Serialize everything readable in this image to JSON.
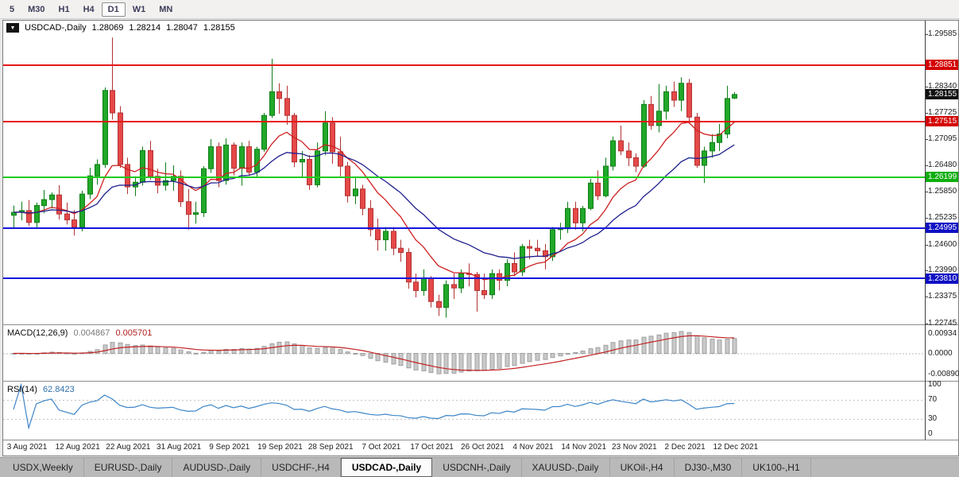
{
  "icons": {
    "chart_menu": "▼"
  },
  "toolbar": {
    "timeframes": [
      "5",
      "M30",
      "H1",
      "H4",
      "D1",
      "W1",
      "MN"
    ],
    "active": "D1"
  },
  "chart_header": {
    "symbol": "USDCAD-,Daily",
    "ohlc": [
      "1.28069",
      "1.28214",
      "1.28047",
      "1.28155"
    ]
  },
  "tabs": {
    "items": [
      "USDX,Weekly",
      "EURUSD-,Daily",
      "AUDUSD-,Daily",
      "USDCHF-,H4",
      "USDCAD-,Daily",
      "USDCNH-,Daily",
      "XAUUSD-,Daily",
      "UKOil-,H4",
      "DJ30-,M30",
      "UK100-,H1"
    ],
    "active": "USDCAD-,Daily"
  },
  "chart_data": {
    "type": "candlestick",
    "title": "USDCAD-,Daily",
    "ylim": [
      1.2272,
      1.299
    ],
    "y_labels": [
      "1.29585",
      "1.28340",
      "1.27725",
      "1.27095",
      "1.26480",
      "1.25850",
      "1.25235",
      "1.24600",
      "1.23990",
      "1.23375",
      "1.22745"
    ],
    "x_labels": [
      "3 Aug 2021",
      "12 Aug 2021",
      "22 Aug 2021",
      "31 Aug 2021",
      "9 Sep 2021",
      "19 Sep 2021",
      "28 Sep 2021",
      "7 Oct 2021",
      "17 Oct 2021",
      "26 Oct 2021",
      "4 Nov 2021",
      "14 Nov 2021",
      "23 Nov 2021",
      "2 Dec 2021",
      "12 Dec 2021"
    ],
    "colors": {
      "up": "#21a829",
      "up_border": "#0e7d18",
      "down": "#e64848",
      "down_border": "#b23333"
    },
    "candles": [
      [
        1.253,
        1.2553,
        1.25,
        1.2537
      ],
      [
        1.2537,
        1.2562,
        1.2518,
        1.2541
      ],
      [
        1.2541,
        1.2566,
        1.2505,
        1.2513
      ],
      [
        1.2513,
        1.256,
        1.25,
        1.2553
      ],
      [
        1.2553,
        1.259,
        1.2535,
        1.2567
      ],
      [
        1.2567,
        1.2584,
        1.2546,
        1.2578
      ],
      [
        1.2578,
        1.2601,
        1.252,
        1.2533
      ],
      [
        1.2533,
        1.256,
        1.2508,
        1.2519
      ],
      [
        1.2519,
        1.2542,
        1.2482,
        1.2502
      ],
      [
        1.2502,
        1.2588,
        1.2492,
        1.258
      ],
      [
        1.258,
        1.2642,
        1.2568,
        1.2623
      ],
      [
        1.2623,
        1.2662,
        1.2602,
        1.265
      ],
      [
        1.265,
        1.2832,
        1.2642,
        1.2825
      ],
      [
        1.2825,
        1.295,
        1.2756,
        1.2772
      ],
      [
        1.2772,
        1.2788,
        1.2642,
        1.265
      ],
      [
        1.265,
        1.2666,
        1.258,
        1.2597
      ],
      [
        1.2597,
        1.2622,
        1.2575,
        1.2608
      ],
      [
        1.2608,
        1.2692,
        1.26,
        1.2683
      ],
      [
        1.2683,
        1.2706,
        1.2614,
        1.2622
      ],
      [
        1.2622,
        1.264,
        1.2582,
        1.2601
      ],
      [
        1.2601,
        1.2655,
        1.2588,
        1.2612
      ],
      [
        1.2612,
        1.2648,
        1.2588,
        1.2622
      ],
      [
        1.2622,
        1.2636,
        1.255,
        1.2562
      ],
      [
        1.2562,
        1.2592,
        1.2496,
        1.2532
      ],
      [
        1.2532,
        1.2562,
        1.251,
        1.2536
      ],
      [
        1.2536,
        1.2646,
        1.2526,
        1.264
      ],
      [
        1.264,
        1.271,
        1.263,
        1.2692
      ],
      [
        1.2692,
        1.2702,
        1.2596,
        1.2612
      ],
      [
        1.2612,
        1.2712,
        1.2602,
        1.2696
      ],
      [
        1.2696,
        1.2702,
        1.2624,
        1.2641
      ],
      [
        1.2641,
        1.2702,
        1.26,
        1.2692
      ],
      [
        1.2692,
        1.2706,
        1.2624,
        1.2632
      ],
      [
        1.2632,
        1.2692,
        1.262,
        1.2686
      ],
      [
        1.2686,
        1.2772,
        1.268,
        1.2766
      ],
      [
        1.2766,
        1.29,
        1.276,
        1.2822
      ],
      [
        1.2822,
        1.2842,
        1.277,
        1.2806
      ],
      [
        1.2806,
        1.2836,
        1.2744,
        1.2766
      ],
      [
        1.2766,
        1.2772,
        1.2644,
        1.2656
      ],
      [
        1.2656,
        1.2682,
        1.262,
        1.2662
      ],
      [
        1.2662,
        1.2672,
        1.259,
        1.2602
      ],
      [
        1.2602,
        1.2702,
        1.2596,
        1.2682
      ],
      [
        1.2682,
        1.2776,
        1.2672,
        1.2748
      ],
      [
        1.2748,
        1.2762,
        1.2652,
        1.268
      ],
      [
        1.268,
        1.2716,
        1.2622,
        1.2646
      ],
      [
        1.2646,
        1.2656,
        1.256,
        1.2576
      ],
      [
        1.2576,
        1.2622,
        1.2556,
        1.2592
      ],
      [
        1.2592,
        1.2602,
        1.253,
        1.2546
      ],
      [
        1.2546,
        1.2566,
        1.248,
        1.2496
      ],
      [
        1.2496,
        1.2522,
        1.2446,
        1.2472
      ],
      [
        1.2472,
        1.2502,
        1.2446,
        1.2492
      ],
      [
        1.2492,
        1.2502,
        1.2436,
        1.2452
      ],
      [
        1.2452,
        1.2472,
        1.242,
        1.2442
      ],
      [
        1.2442,
        1.2452,
        1.2356,
        1.2372
      ],
      [
        1.2372,
        1.2392,
        1.2336,
        1.2352
      ],
      [
        1.2352,
        1.2402,
        1.234,
        1.2382
      ],
      [
        1.2382,
        1.2386,
        1.2312,
        1.2326
      ],
      [
        1.2326,
        1.2342,
        1.2292,
        1.2312
      ],
      [
        1.2312,
        1.2376,
        1.2288,
        1.2366
      ],
      [
        1.2366,
        1.2392,
        1.2332,
        1.2358
      ],
      [
        1.2358,
        1.2402,
        1.2346,
        1.2392
      ],
      [
        1.2392,
        1.2416,
        1.2362,
        1.239
      ],
      [
        1.239,
        1.2396,
        1.2302,
        1.2352
      ],
      [
        1.2352,
        1.2392,
        1.2332,
        1.2342
      ],
      [
        1.2342,
        1.2402,
        1.2332,
        1.2392
      ],
      [
        1.2392,
        1.2402,
        1.2352,
        1.2376
      ],
      [
        1.2376,
        1.2426,
        1.2362,
        1.2416
      ],
      [
        1.2416,
        1.2442,
        1.2386,
        1.2396
      ],
      [
        1.2396,
        1.2462,
        1.2386,
        1.2456
      ],
      [
        1.2456,
        1.2472,
        1.2426,
        1.2452
      ],
      [
        1.2452,
        1.2472,
        1.2432,
        1.2446
      ],
      [
        1.2446,
        1.2462,
        1.2402,
        1.2432
      ],
      [
        1.2432,
        1.2502,
        1.2422,
        1.2496
      ],
      [
        1.2496,
        1.2512,
        1.2472,
        1.2498
      ],
      [
        1.2498,
        1.2562,
        1.2488,
        1.2546
      ],
      [
        1.2546,
        1.2562,
        1.2496,
        1.2512
      ],
      [
        1.2512,
        1.2552,
        1.2492,
        1.2546
      ],
      [
        1.2546,
        1.2616,
        1.2542,
        1.2606
      ],
      [
        1.2606,
        1.2636,
        1.2566,
        1.2576
      ],
      [
        1.2576,
        1.2666,
        1.2572,
        1.2646
      ],
      [
        1.2646,
        1.2716,
        1.2636,
        1.2706
      ],
      [
        1.2706,
        1.2742,
        1.2672,
        1.2682
      ],
      [
        1.2682,
        1.2702,
        1.2646,
        1.2666
      ],
      [
        1.2666,
        1.2676,
        1.2632,
        1.2646
      ],
      [
        1.2646,
        1.2802,
        1.2642,
        1.2792
      ],
      [
        1.2792,
        1.2812,
        1.2732,
        1.2742
      ],
      [
        1.2742,
        1.284,
        1.2726,
        1.2776
      ],
      [
        1.2776,
        1.2836,
        1.2756,
        1.2822
      ],
      [
        1.2822,
        1.2846,
        1.2786,
        1.2802
      ],
      [
        1.2802,
        1.2856,
        1.2776,
        1.2842
      ],
      [
        1.2842,
        1.2852,
        1.2746,
        1.2762
      ],
      [
        1.2762,
        1.2772,
        1.2642,
        1.2648
      ],
      [
        1.2648,
        1.2692,
        1.2606,
        1.2682
      ],
      [
        1.2682,
        1.2722,
        1.2666,
        1.2702
      ],
      [
        1.2702,
        1.2746,
        1.2682,
        1.2722
      ],
      [
        1.2722,
        1.2836,
        1.2712,
        1.2806
      ],
      [
        1.28069,
        1.28214,
        1.28047,
        1.28155
      ]
    ],
    "moving_averages": [
      {
        "period": 10,
        "color": "#cf2020",
        "type": "ema"
      },
      {
        "period": 22,
        "color": "#20208f",
        "type": "ema"
      }
    ],
    "horizontal_lines": [
      {
        "value": 1.28851,
        "label": "1.28851",
        "color": "#e81717",
        "tag_bg": "#d40000"
      },
      {
        "value": 1.27515,
        "label": "1.27515",
        "color": "#e81717",
        "tag_bg": "#d40000"
      },
      {
        "value": 1.26199,
        "label": "1.26199",
        "color": "#1ecb1e",
        "tag_bg": "#0fae0f"
      },
      {
        "value": 1.24995,
        "label": "1.24995",
        "color": "#1515dd",
        "tag_bg": "#0f0fc4"
      },
      {
        "value": 1.2381,
        "label": "1.23810",
        "color": "#1515dd",
        "tag_bg": "#0f0fc4"
      }
    ],
    "current_price": {
      "value": 1.28155,
      "label": "1.28155",
      "tag_bg": "#111111"
    },
    "macd": {
      "label": "MACD(12,26,9)",
      "fast": 12,
      "slow": 26,
      "signal": 9,
      "values": [
        "0.004867",
        "0.005701"
      ],
      "axis_labels": [
        "0.00934",
        "0.0000",
        "-0.00890"
      ],
      "histogram_color": "#c9c9c9",
      "histogram_border": "#a0a0a0",
      "signal_color": "#c22222"
    },
    "rsi": {
      "label": "RSI(14)",
      "period": 14,
      "value": "62.8423",
      "axis_labels": [
        "100",
        "70",
        "30",
        "0"
      ],
      "levels": [
        70,
        30
      ],
      "line_color": "#3d85c8"
    }
  }
}
